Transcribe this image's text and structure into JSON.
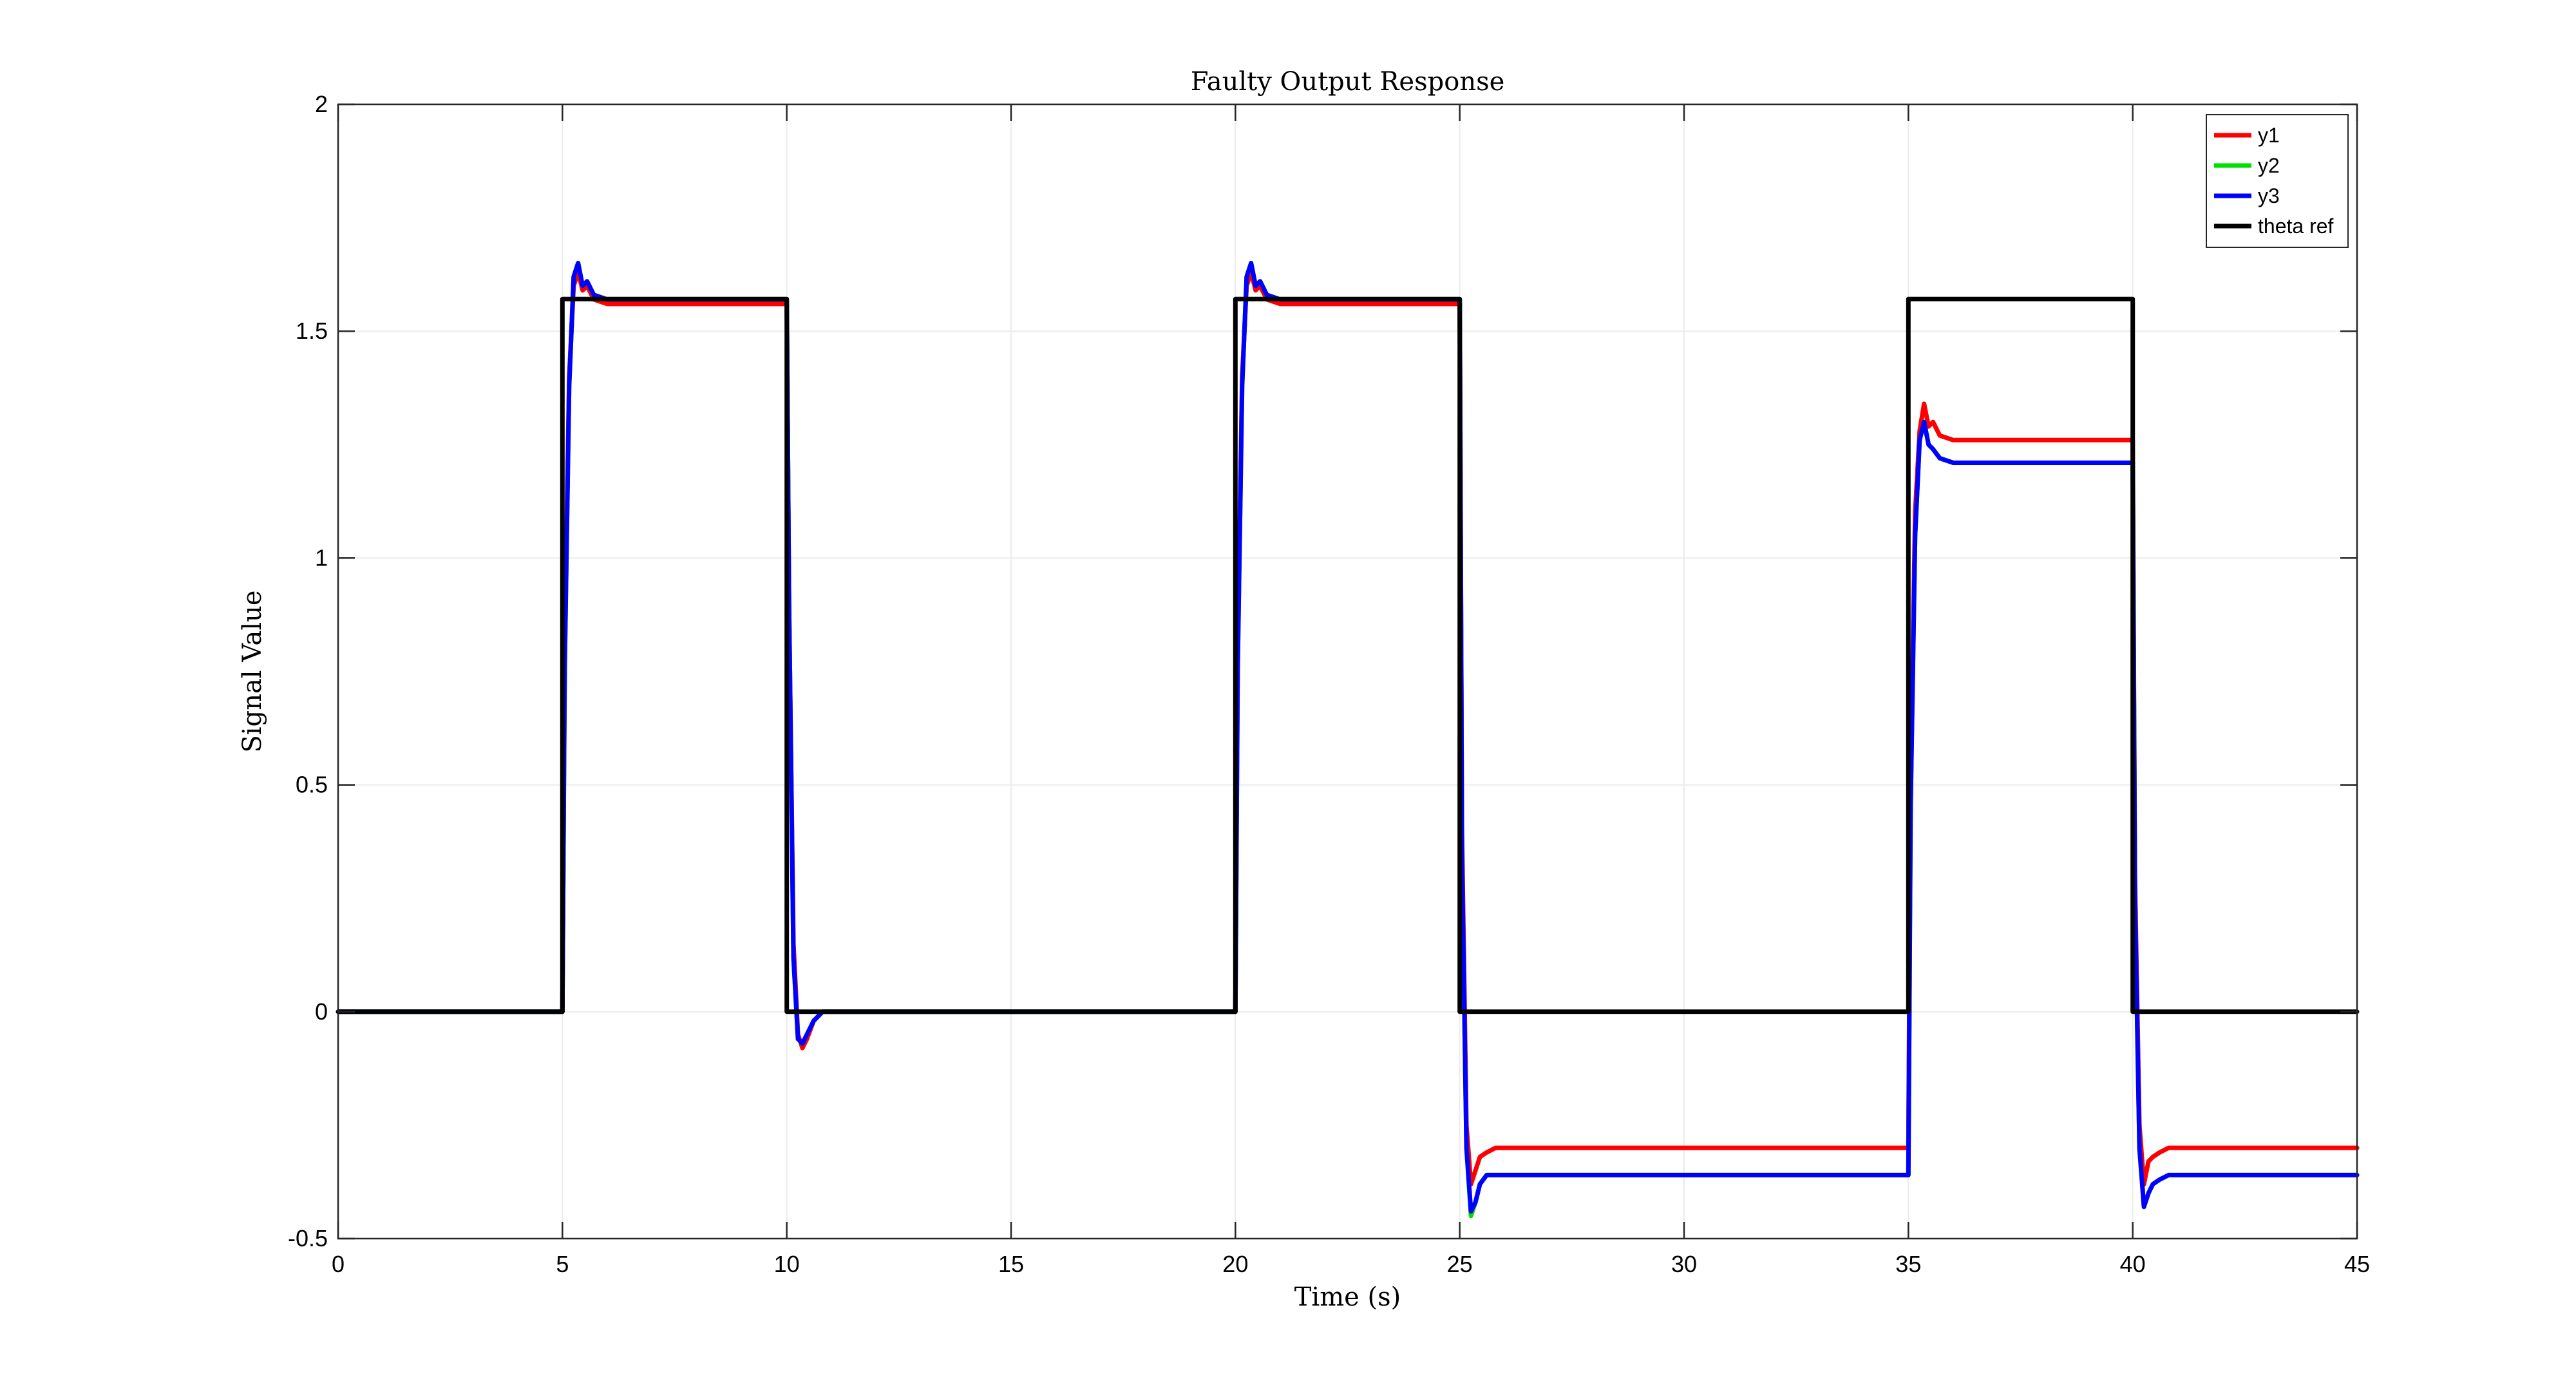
{
  "chart_data": {
    "type": "line",
    "title": "Faulty Output Response",
    "xlabel": "Time (s)",
    "ylabel": "Signal Value",
    "xlim": [
      0,
      45
    ],
    "ylim": [
      -0.5,
      2
    ],
    "xticks": [
      0,
      5,
      10,
      15,
      20,
      25,
      30,
      35,
      40,
      45
    ],
    "yticks": [
      -0.5,
      0,
      0.5,
      1,
      1.5,
      2
    ],
    "xtick_labels": [
      "0",
      "5",
      "10",
      "15",
      "20",
      "25",
      "30",
      "35",
      "40",
      "45"
    ],
    "ytick_labels": [
      "-0.5",
      "0",
      "0.5",
      "1",
      "1.5",
      "2"
    ],
    "grid": true,
    "legend_position": "top-right",
    "series": [
      {
        "name": "y1",
        "color": "#ff0000",
        "x": [
          0,
          5.0,
          5.05,
          5.15,
          5.25,
          5.35,
          5.45,
          5.55,
          5.7,
          6.0,
          10.0,
          10.05,
          10.15,
          10.25,
          10.35,
          10.45,
          10.6,
          10.8,
          20.0,
          20.05,
          20.15,
          20.25,
          20.35,
          20.45,
          20.55,
          20.7,
          21.0,
          25.0,
          25.05,
          25.15,
          25.25,
          25.35,
          25.45,
          25.6,
          25.8,
          35.0,
          35.05,
          35.15,
          35.25,
          35.35,
          35.45,
          35.55,
          35.7,
          36.0,
          40.0,
          40.05,
          40.15,
          40.25,
          40.35,
          40.45,
          40.6,
          40.8,
          45
        ],
        "y": [
          0,
          0,
          0.8,
          1.4,
          1.6,
          1.63,
          1.59,
          1.6,
          1.57,
          1.56,
          1.56,
          0.9,
          0.15,
          -0.05,
          -0.08,
          -0.06,
          -0.02,
          0,
          0,
          0.8,
          1.4,
          1.6,
          1.63,
          1.59,
          1.6,
          1.57,
          1.56,
          1.56,
          0.4,
          -0.25,
          -0.38,
          -0.35,
          -0.32,
          -0.31,
          -0.3,
          -0.3,
          0.5,
          1.1,
          1.28,
          1.34,
          1.29,
          1.3,
          1.27,
          1.26,
          1.26,
          0.3,
          -0.25,
          -0.38,
          -0.33,
          -0.32,
          -0.31,
          -0.3,
          -0.3
        ]
      },
      {
        "name": "y2",
        "color": "#00e000",
        "x": [
          0,
          5.0,
          5.05,
          5.15,
          5.25,
          5.35,
          5.45,
          5.55,
          5.7,
          6.0,
          10.0,
          10.05,
          10.15,
          10.25,
          10.35,
          10.45,
          10.6,
          10.8,
          20.0,
          20.05,
          20.15,
          20.25,
          20.35,
          20.45,
          20.55,
          20.7,
          21.0,
          25.0,
          25.05,
          25.15,
          25.25,
          25.35,
          25.45,
          25.6,
          25.8,
          35.0,
          35.05,
          35.15,
          35.25,
          35.35,
          35.45,
          35.55,
          35.7,
          36.0,
          40.0,
          40.05,
          40.15,
          40.25,
          40.35,
          40.45,
          40.6,
          40.8,
          45
        ],
        "y": [
          0,
          0,
          0.75,
          1.38,
          1.62,
          1.65,
          1.6,
          1.61,
          1.58,
          1.57,
          1.57,
          0.9,
          0.12,
          -0.06,
          -0.07,
          -0.05,
          -0.02,
          0,
          0,
          0.75,
          1.38,
          1.62,
          1.65,
          1.6,
          1.61,
          1.58,
          1.57,
          1.57,
          0.35,
          -0.3,
          -0.45,
          -0.42,
          -0.38,
          -0.36,
          -0.36,
          -0.36,
          0.45,
          1.05,
          1.26,
          1.3,
          1.25,
          1.24,
          1.22,
          1.21,
          1.21,
          0.25,
          -0.3,
          -0.43,
          -0.4,
          -0.38,
          -0.37,
          -0.36,
          -0.36
        ]
      },
      {
        "name": "y3",
        "color": "#0000ff",
        "x": [
          0,
          5.0,
          5.05,
          5.15,
          5.25,
          5.35,
          5.45,
          5.55,
          5.7,
          6.0,
          10.0,
          10.05,
          10.15,
          10.25,
          10.35,
          10.45,
          10.6,
          10.8,
          20.0,
          20.05,
          20.15,
          20.25,
          20.35,
          20.45,
          20.55,
          20.7,
          21.0,
          25.0,
          25.05,
          25.15,
          25.25,
          25.35,
          25.45,
          25.6,
          25.8,
          35.0,
          35.05,
          35.15,
          35.25,
          35.35,
          35.45,
          35.55,
          35.7,
          36.0,
          40.0,
          40.05,
          40.15,
          40.25,
          40.35,
          40.45,
          40.6,
          40.8,
          45
        ],
        "y": [
          0,
          0,
          0.75,
          1.38,
          1.62,
          1.65,
          1.6,
          1.61,
          1.58,
          1.57,
          1.57,
          0.9,
          0.12,
          -0.06,
          -0.07,
          -0.05,
          -0.02,
          0,
          0,
          0.75,
          1.38,
          1.62,
          1.65,
          1.6,
          1.61,
          1.58,
          1.57,
          1.57,
          0.35,
          -0.3,
          -0.44,
          -0.42,
          -0.38,
          -0.36,
          -0.36,
          -0.36,
          0.45,
          1.05,
          1.26,
          1.3,
          1.25,
          1.24,
          1.22,
          1.21,
          1.21,
          0.25,
          -0.3,
          -0.43,
          -0.4,
          -0.38,
          -0.37,
          -0.36,
          -0.36
        ]
      },
      {
        "name": "theta ref",
        "color": "#000000",
        "x": [
          0,
          5,
          5,
          10,
          10,
          20,
          20,
          25,
          25,
          35,
          35,
          40,
          40,
          45
        ],
        "y": [
          0,
          0,
          1.5708,
          1.5708,
          0,
          0,
          1.5708,
          1.5708,
          0,
          0,
          1.5708,
          1.5708,
          0,
          0
        ]
      }
    ]
  }
}
